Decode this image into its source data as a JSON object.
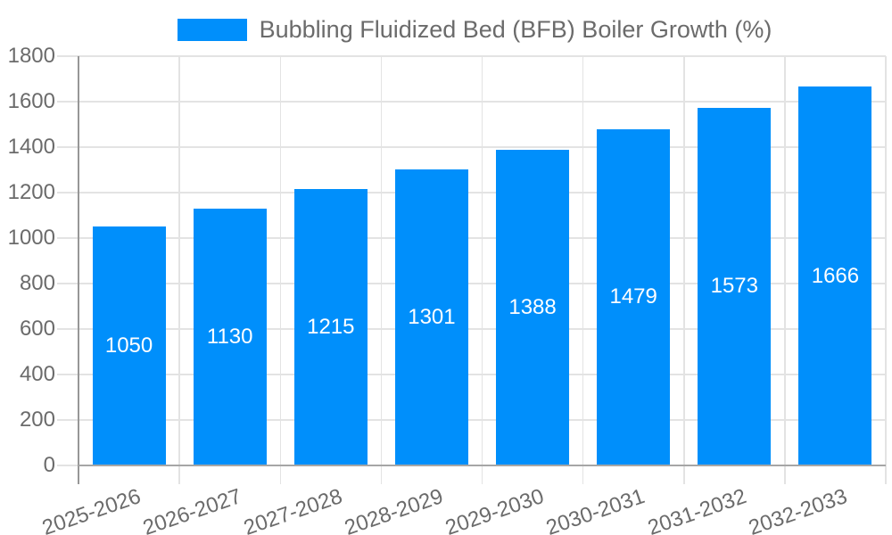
{
  "legend": {
    "label": "Bubbling Fluidized Bed (BFB) Boiler Growth (%)",
    "swatch_color": "#008FFB"
  },
  "chart_data": {
    "type": "bar",
    "title": "Bubbling Fluidized Bed (BFB) Boiler Growth (%)",
    "categories": [
      "2025-2026",
      "2026-2027",
      "2027-2028",
      "2028-2029",
      "2029-2030",
      "2030-2031",
      "2031-2032",
      "2032-2033"
    ],
    "series": [
      {
        "name": "Bubbling Fluidized Bed (BFB) Boiler Growth (%)",
        "values": [
          1050,
          1130,
          1215,
          1301,
          1388,
          1479,
          1573,
          1666
        ]
      }
    ],
    "value_labels": [
      1050,
      1130,
      1215,
      1301,
      1388,
      1479,
      1573,
      1666
    ],
    "xlabel": "",
    "ylabel": "",
    "ylim": [
      0,
      1800
    ],
    "ytick_step": 200,
    "yticks": [
      0,
      200,
      400,
      600,
      800,
      1000,
      1200,
      1400,
      1600,
      1800
    ],
    "grid": true,
    "legend_position": "top-center",
    "colors": {
      "bar": "#008FFB",
      "value_label": "#ffffff",
      "grid": "#e3e3e3",
      "axis": "#9c9c9c",
      "tick_label": "#6b6b6b",
      "background": "#ffffff"
    }
  }
}
